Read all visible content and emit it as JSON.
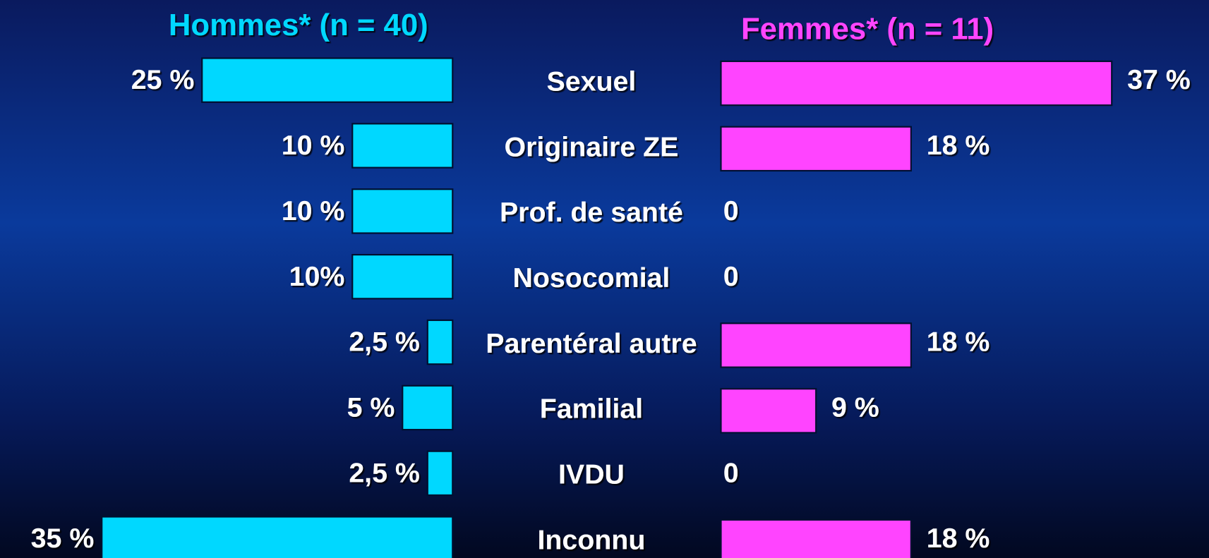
{
  "chart_data": {
    "type": "bar",
    "categories": [
      "Sexuel",
      "Originaire ZE",
      "Prof. de santé",
      "Nosocomial",
      "Parentéral autre",
      "Familial",
      "IVDU",
      "Inconnu"
    ],
    "series": [
      {
        "name": "Hommes* (n = 40)",
        "color": "#00d8ff",
        "values": [
          25,
          10,
          10,
          10,
          2.5,
          5,
          2.5,
          35
        ],
        "value_labels": [
          "25 %",
          "10 %",
          "10 %",
          "10%",
          "2,5 %",
          "5 %",
          "2,5 %",
          "35 %"
        ]
      },
      {
        "name": "Femmes* (n = 11)",
        "color": "#ff44ff",
        "values": [
          37,
          18,
          0,
          0,
          18,
          9,
          0,
          18
        ],
        "value_labels": [
          "37 %",
          "18 %",
          "0",
          "0",
          "18 %",
          "9 %",
          "0",
          "18 %"
        ]
      }
    ]
  }
}
